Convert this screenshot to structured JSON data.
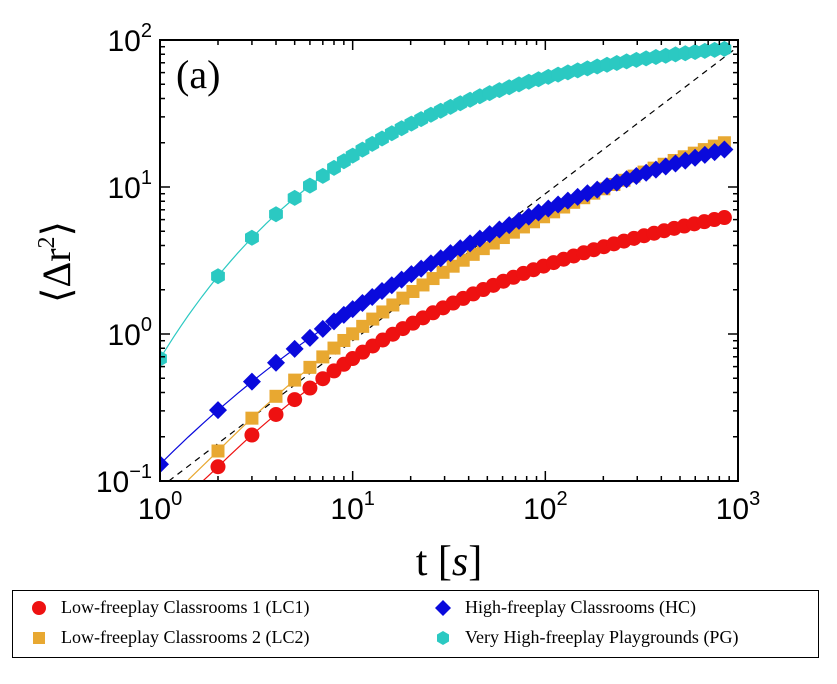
{
  "chart_data": {
    "type": "scatter",
    "panel_label": "(a)",
    "xlabel": "t [s]",
    "ylabel": "⟨Δr²⟩",
    "xscale": "log",
    "yscale": "log",
    "xlim": [
      1,
      1000
    ],
    "ylim": [
      0.1,
      100
    ],
    "x_ticks": [
      {
        "base": "10",
        "exp": "0"
      },
      {
        "base": "10",
        "exp": "1"
      },
      {
        "base": "10",
        "exp": "2"
      },
      {
        "base": "10",
        "exp": "3"
      }
    ],
    "y_ticks": [
      {
        "base": "10",
        "exp": "−1"
      },
      {
        "base": "10",
        "exp": "0"
      },
      {
        "base": "10",
        "exp": "1"
      },
      {
        "base": "10",
        "exp": "2"
      }
    ],
    "reference_line": {
      "slope": 1,
      "intercept_at_t1": 0.09,
      "style": "dashed"
    },
    "series": [
      {
        "name": "Low-freeplay Classrooms 1 (LC1)",
        "marker": "circle",
        "color": "#ee1111",
        "t0": 2,
        "y0": 0.125,
        "t1": 850,
        "y1": 6.2,
        "npts": 46
      },
      {
        "name": "Low-freeplay Classrooms 2 (LC2)",
        "marker": "square",
        "color": "#e8a831",
        "t0": 2,
        "y0": 0.16,
        "t1": 850,
        "y1": 20,
        "npts": 46
      },
      {
        "name": "High-freeplay Classrooms (HC)",
        "marker": "diamond",
        "color": "#0a0adc",
        "t0": 1,
        "y0": 0.13,
        "t1": 850,
        "y1": 18,
        "npts": 48
      },
      {
        "name": "Very High-freeplay Playgrounds (PG)",
        "marker": "hexagon",
        "color": "#2bc9c2",
        "t0": 1,
        "y0": 0.68,
        "t1": 850,
        "y1": 87,
        "npts": 48
      }
    ]
  },
  "legend": {
    "lc1": "Low-freeplay Classrooms 1 (LC1)",
    "lc2": "Low-freeplay Classrooms 2 (LC2)",
    "hc": "High-freeplay Classrooms (HC)",
    "pg": "Very High-freeplay Playgrounds (PG)"
  }
}
